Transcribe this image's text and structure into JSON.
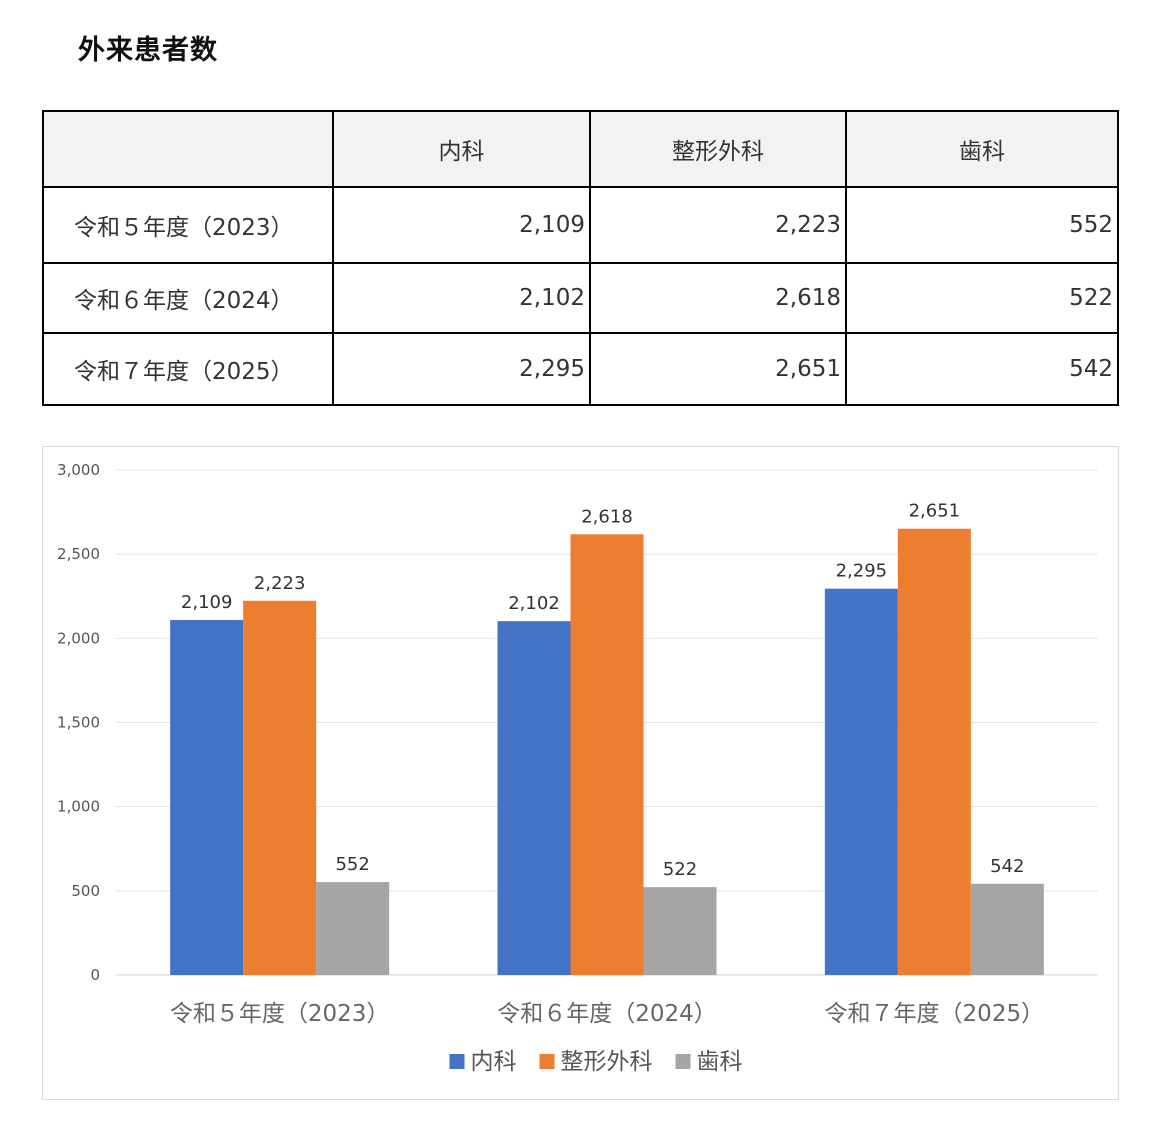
{
  "page": {
    "title": "外来患者数"
  },
  "table": {
    "header": [
      "",
      "内科",
      "整形外科",
      "歯科"
    ],
    "rows": [
      {
        "label": "令和５年度（2023）",
        "values": [
          "2,109",
          "2,223",
          "552"
        ]
      },
      {
        "label": "令和６年度（2024）",
        "values": [
          "2,102",
          "2,618",
          "522"
        ]
      },
      {
        "label": "令和７年度（2025）",
        "values": [
          "2,295",
          "2,651",
          "542"
        ]
      }
    ]
  },
  "chart_data": {
    "type": "bar",
    "title": "",
    "xlabel": "",
    "ylabel": "",
    "categories": [
      "令和５年度（2023）",
      "令和６年度（2024）",
      "令和７年度（2025）"
    ],
    "series": [
      {
        "name": "内科",
        "values": [
          2109,
          2102,
          2295
        ],
        "color": "#4472C4"
      },
      {
        "name": "整形外科",
        "values": [
          2223,
          2618,
          2651
        ],
        "color": "#ED7D31"
      },
      {
        "name": "歯科",
        "values": [
          552,
          522,
          542
        ],
        "color": "#A5A5A5"
      }
    ],
    "ylim": [
      0,
      3000
    ],
    "yticks": [
      0,
      500,
      1000,
      1500,
      2000,
      2500,
      3000
    ],
    "ytick_labels": [
      "0",
      "500",
      "1,000",
      "1,500",
      "2,000",
      "2,500",
      "3,000"
    ],
    "data_labels": true,
    "grid": true,
    "legend": "bottom"
  }
}
